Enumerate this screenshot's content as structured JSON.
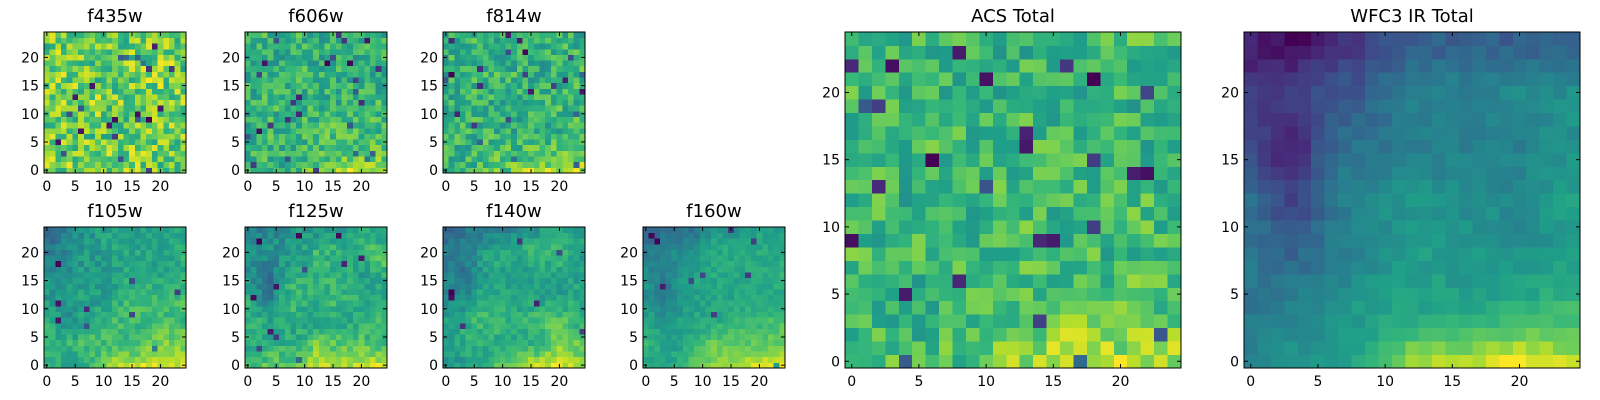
{
  "figure": {
    "colormap": "viridis",
    "colormap_stops": [
      "#440154",
      "#482878",
      "#3e4989",
      "#31688e",
      "#26828e",
      "#1f9e89",
      "#35b779",
      "#6ece58",
      "#b5de2b",
      "#fde725"
    ]
  },
  "chart_data": [
    {
      "type": "heatmap",
      "title": "f435w",
      "shape": [
        25,
        25
      ],
      "xlim": [
        -0.5,
        24.5
      ],
      "ylim": [
        -0.5,
        24.5
      ],
      "xticks": [
        0,
        5,
        10,
        15,
        20
      ],
      "yticks": [
        0,
        5,
        10,
        15,
        20
      ],
      "origin": "lower",
      "approx_field": {
        "seed": 11,
        "mean": 0.65,
        "noise": 0.55,
        "smooth": 0.1,
        "bottom_bright": 0.0,
        "topleft_dark": 0.0,
        "dark_spots": 0.04
      }
    },
    {
      "type": "heatmap",
      "title": "f606w",
      "shape": [
        25,
        25
      ],
      "xlim": [
        -0.5,
        24.5
      ],
      "ylim": [
        -0.5,
        24.5
      ],
      "xticks": [
        0,
        5,
        10,
        15,
        20
      ],
      "yticks": [
        0,
        5,
        10,
        15,
        20
      ],
      "origin": "lower",
      "approx_field": {
        "seed": 22,
        "mean": 0.55,
        "noise": 0.5,
        "smooth": 0.1,
        "bottom_bright": 0.35,
        "topleft_dark": 0.0,
        "dark_spots": 0.04
      }
    },
    {
      "type": "heatmap",
      "title": "f814w",
      "shape": [
        25,
        25
      ],
      "xlim": [
        -0.5,
        24.5
      ],
      "ylim": [
        -0.5,
        24.5
      ],
      "xticks": [
        0,
        5,
        10,
        15,
        20
      ],
      "yticks": [
        0,
        5,
        10,
        15,
        20
      ],
      "origin": "lower",
      "approx_field": {
        "seed": 33,
        "mean": 0.55,
        "noise": 0.5,
        "smooth": 0.15,
        "bottom_bright": 0.4,
        "topleft_dark": 0.0,
        "dark_spots": 0.04
      }
    },
    {
      "type": "heatmap",
      "title": "f105w",
      "shape": [
        25,
        25
      ],
      "xlim": [
        -0.5,
        24.5
      ],
      "ylim": [
        -0.5,
        24.5
      ],
      "xticks": [
        0,
        5,
        10,
        15,
        20
      ],
      "yticks": [
        0,
        5,
        10,
        15,
        20
      ],
      "origin": "lower",
      "approx_field": {
        "seed": 44,
        "mean": 0.45,
        "noise": 0.3,
        "smooth": 0.3,
        "bottom_bright": 0.55,
        "topleft_dark": 0.3,
        "dark_spots": 0.02
      }
    },
    {
      "type": "heatmap",
      "title": "f125w",
      "shape": [
        25,
        25
      ],
      "xlim": [
        -0.5,
        24.5
      ],
      "ylim": [
        -0.5,
        24.5
      ],
      "xticks": [
        0,
        5,
        10,
        15,
        20
      ],
      "yticks": [
        0,
        5,
        10,
        15,
        20
      ],
      "origin": "lower",
      "approx_field": {
        "seed": 55,
        "mean": 0.5,
        "noise": 0.3,
        "smooth": 0.35,
        "bottom_bright": 0.5,
        "topleft_dark": 0.3,
        "dark_spots": 0.02
      }
    },
    {
      "type": "heatmap",
      "title": "f140w",
      "shape": [
        25,
        25
      ],
      "xlim": [
        -0.5,
        24.5
      ],
      "ylim": [
        -0.5,
        24.5
      ],
      "xticks": [
        0,
        5,
        10,
        15,
        20
      ],
      "yticks": [
        0,
        5,
        10,
        15,
        20
      ],
      "origin": "lower",
      "approx_field": {
        "seed": 66,
        "mean": 0.5,
        "noise": 0.28,
        "smooth": 0.3,
        "bottom_bright": 0.5,
        "topleft_dark": 0.35,
        "dark_spots": 0.01
      }
    },
    {
      "type": "heatmap",
      "title": "f160w",
      "shape": [
        25,
        25
      ],
      "xlim": [
        -0.5,
        24.5
      ],
      "ylim": [
        -0.5,
        24.5
      ],
      "xticks": [
        0,
        5,
        10,
        15,
        20
      ],
      "yticks": [
        0,
        5,
        10,
        15,
        20
      ],
      "origin": "lower",
      "approx_field": {
        "seed": 77,
        "mean": 0.38,
        "noise": 0.22,
        "smooth": 0.25,
        "bottom_bright": 0.6,
        "topleft_dark": 0.4,
        "dark_spots": 0.01
      }
    },
    {
      "type": "heatmap",
      "title": "ACS Total",
      "shape": [
        25,
        25
      ],
      "xlim": [
        -0.5,
        24.5
      ],
      "ylim": [
        -0.5,
        24.5
      ],
      "xticks": [
        0,
        5,
        10,
        15,
        20
      ],
      "yticks": [
        0,
        5,
        10,
        15,
        20
      ],
      "origin": "lower",
      "approx_field": {
        "seed": 88,
        "mean": 0.6,
        "noise": 0.45,
        "smooth": 0.1,
        "bottom_bright": 0.35,
        "topleft_dark": 0.0,
        "dark_spots": 0.035
      }
    },
    {
      "type": "heatmap",
      "title": "WFC3 IR Total",
      "shape": [
        25,
        25
      ],
      "xlim": [
        -0.5,
        24.5
      ],
      "ylim": [
        -0.5,
        24.5
      ],
      "xticks": [
        0,
        5,
        10,
        15,
        20
      ],
      "yticks": [
        0,
        5,
        10,
        15,
        20
      ],
      "origin": "lower",
      "approx_field": {
        "seed": 99,
        "mean": 0.4,
        "noise": 0.12,
        "smooth": 0.2,
        "bottom_bright": 0.7,
        "topleft_dark": 0.45,
        "dark_spots": 0.0
      }
    }
  ]
}
